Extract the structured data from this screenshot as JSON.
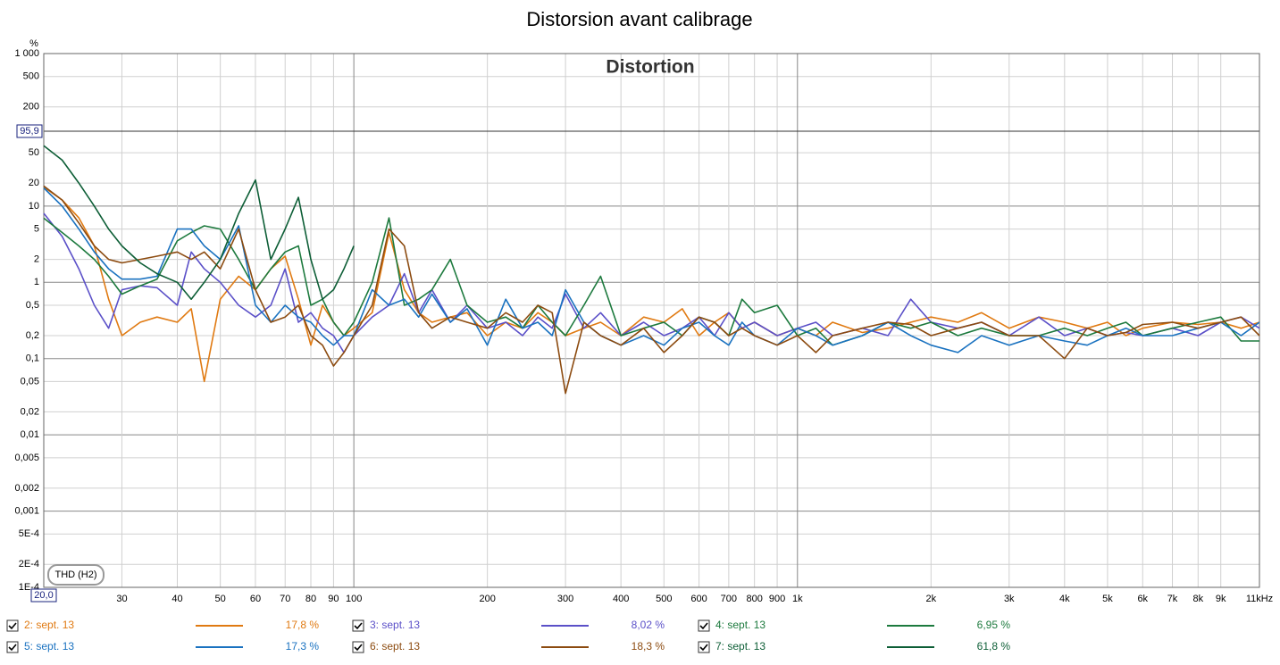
{
  "chart_data": {
    "type": "line",
    "title": "Distorsion avant calibrage",
    "plot_title": "Distortion",
    "y_unit": "%",
    "mode_label": "THD (H2)",
    "log_x": true,
    "log_y": true,
    "grid": true,
    "xlim": [
      20,
      11000
    ],
    "ylim": [
      0.0001,
      1000
    ],
    "xticks": [
      30,
      40,
      50,
      60,
      70,
      80,
      90,
      100,
      200,
      300,
      400,
      500,
      600,
      700,
      800,
      900,
      {
        "value": 1000,
        "label": "1k"
      },
      {
        "value": 2000,
        "label": "2k"
      },
      {
        "value": 3000,
        "label": "3k"
      },
      {
        "value": 4000,
        "label": "4k"
      },
      {
        "value": 5000,
        "label": "5k"
      },
      {
        "value": 6000,
        "label": "6k"
      },
      {
        "value": 7000,
        "label": "7k"
      },
      {
        "value": 8000,
        "label": "8k"
      },
      {
        "value": 9000,
        "label": "9k"
      },
      {
        "value": 11000,
        "label": "11kHz"
      }
    ],
    "yticks": [
      {
        "value": 1000,
        "label": "1 000"
      },
      500,
      200,
      50,
      20,
      10,
      5,
      2,
      1,
      {
        "value": 0.5,
        "label": "0,5"
      },
      {
        "value": 0.2,
        "label": "0,2"
      },
      {
        "value": 0.1,
        "label": "0,1"
      },
      {
        "value": 0.05,
        "label": "0,05"
      },
      {
        "value": 0.02,
        "label": "0,02"
      },
      {
        "value": 0.01,
        "label": "0,01"
      },
      {
        "value": 0.005,
        "label": "0,005"
      },
      {
        "value": 0.002,
        "label": "0,002"
      },
      {
        "value": 0.001,
        "label": "0,001"
      },
      {
        "value": 0.0005,
        "label": "5E-4"
      },
      {
        "value": 0.0002,
        "label": "2E-4"
      },
      {
        "value": 0.0001,
        "label": "1E-4"
      }
    ],
    "cursor": {
      "x": 20,
      "x_label": "20,0",
      "y": 95.9,
      "y_label": "95,9"
    },
    "x": [
      20,
      22,
      24,
      26,
      28,
      30,
      33,
      36,
      40,
      43,
      46,
      50,
      55,
      60,
      65,
      70,
      75,
      80,
      85,
      90,
      95,
      100,
      110,
      120,
      130,
      140,
      150,
      165,
      180,
      200,
      220,
      240,
      260,
      280,
      300,
      330,
      360,
      400,
      450,
      500,
      550,
      600,
      650,
      700,
      750,
      800,
      900,
      1000,
      1100,
      1200,
      1400,
      1600,
      1800,
      2000,
      2300,
      2600,
      3000,
      3500,
      4000,
      4500,
      5000,
      5500,
      6000,
      7000,
      8000,
      9000,
      10000,
      11000
    ],
    "series": [
      {
        "name": "2: sept. 13",
        "color": "#e07a12",
        "readout": 17.8,
        "readout_label": "17,8 %",
        "values": [
          17.8,
          12,
          7,
          3,
          0.6,
          0.2,
          0.3,
          0.35,
          0.3,
          0.45,
          0.05,
          0.6,
          1.2,
          0.8,
          1.5,
          2.2,
          0.6,
          0.15,
          0.5,
          0.3,
          0.2,
          0.25,
          0.4,
          4.5,
          0.8,
          0.4,
          0.3,
          0.35,
          0.4,
          0.2,
          0.3,
          0.25,
          0.4,
          0.3,
          0.2,
          0.25,
          0.3,
          0.2,
          0.35,
          0.3,
          0.45,
          0.2,
          0.3,
          0.4,
          0.25,
          0.3,
          0.2,
          0.25,
          0.2,
          0.3,
          0.22,
          0.25,
          0.3,
          0.35,
          0.3,
          0.4,
          0.25,
          0.35,
          0.3,
          0.25,
          0.3,
          0.2,
          0.25,
          0.3,
          0.28,
          0.3,
          0.25,
          0.3
        ]
      },
      {
        "name": "3: sept. 13",
        "color": "#5b50c8",
        "readout": 8.02,
        "readout_label": "8,02 %",
        "values": [
          8.02,
          4,
          1.5,
          0.5,
          0.25,
          0.8,
          0.9,
          0.85,
          0.5,
          2.5,
          1.5,
          1,
          0.5,
          0.35,
          0.5,
          1.5,
          0.3,
          0.4,
          0.25,
          0.2,
          0.12,
          0.2,
          0.35,
          0.5,
          1.3,
          0.4,
          0.8,
          0.3,
          0.5,
          0.25,
          0.3,
          0.2,
          0.35,
          0.25,
          0.7,
          0.25,
          0.4,
          0.2,
          0.3,
          0.2,
          0.25,
          0.35,
          0.2,
          0.4,
          0.25,
          0.3,
          0.2,
          0.25,
          0.3,
          0.2,
          0.25,
          0.2,
          0.6,
          0.3,
          0.25,
          0.3,
          0.2,
          0.35,
          0.2,
          0.25,
          0.2,
          0.22,
          0.2,
          0.25,
          0.2,
          0.3,
          0.35,
          0.25
        ]
      },
      {
        "name": "4: sept. 13",
        "color": "#1d7a3e",
        "readout": 6.95,
        "readout_label": "6,95 %",
        "values": [
          6.95,
          4.5,
          3,
          2,
          1.2,
          0.7,
          0.9,
          1.1,
          3.5,
          4.5,
          5.5,
          5,
          2,
          0.8,
          1.5,
          2.5,
          3,
          0.5,
          0.6,
          0.3,
          0.2,
          0.3,
          1,
          7,
          0.5,
          0.6,
          0.8,
          2,
          0.5,
          0.3,
          0.35,
          0.25,
          0.5,
          0.3,
          0.2,
          0.5,
          1.2,
          0.2,
          0.25,
          0.3,
          0.2,
          0.35,
          0.3,
          0.2,
          0.6,
          0.4,
          0.5,
          0.2,
          0.25,
          0.15,
          0.2,
          0.3,
          0.25,
          0.3,
          0.2,
          0.25,
          0.2,
          0.2,
          0.25,
          0.2,
          0.25,
          0.3,
          0.2,
          0.25,
          0.3,
          0.35,
          0.17,
          0.17
        ]
      },
      {
        "name": "5: sept. 13",
        "color": "#1a72c0",
        "readout": 17.3,
        "readout_label": "17,3 %",
        "values": [
          17.3,
          10,
          5,
          2.5,
          1.5,
          1.1,
          1.1,
          1.2,
          5,
          5,
          3,
          2,
          5.5,
          0.5,
          0.3,
          0.5,
          0.35,
          0.3,
          0.2,
          0.15,
          0.2,
          0.2,
          0.8,
          0.5,
          0.6,
          0.35,
          0.7,
          0.3,
          0.45,
          0.15,
          0.6,
          0.25,
          0.3,
          0.2,
          0.8,
          0.3,
          0.2,
          0.15,
          0.2,
          0.15,
          0.25,
          0.3,
          0.2,
          0.15,
          0.3,
          0.2,
          0.15,
          0.25,
          0.2,
          0.15,
          0.2,
          0.3,
          0.2,
          0.15,
          0.12,
          0.2,
          0.15,
          0.2,
          0.17,
          0.15,
          0.2,
          0.25,
          0.2,
          0.2,
          0.25,
          0.3,
          0.2,
          0.3
        ]
      },
      {
        "name": "6: sept. 13",
        "color": "#8c4b10",
        "readout": 18.3,
        "readout_label": "18,3 %",
        "values": [
          18.3,
          12,
          6,
          3,
          2,
          1.8,
          2,
          2.2,
          2.5,
          2,
          2.5,
          1.5,
          5,
          0.8,
          0.3,
          0.35,
          0.5,
          0.2,
          0.15,
          0.08,
          0.12,
          0.2,
          0.5,
          5,
          3,
          0.4,
          0.25,
          0.35,
          0.3,
          0.25,
          0.4,
          0.3,
          0.5,
          0.4,
          0.035,
          0.3,
          0.2,
          0.15,
          0.25,
          0.12,
          0.2,
          0.35,
          0.3,
          0.2,
          0.25,
          0.2,
          0.15,
          0.2,
          0.12,
          0.2,
          0.25,
          0.3,
          0.28,
          0.2,
          0.25,
          0.3,
          0.2,
          0.2,
          0.1,
          0.25,
          0.2,
          0.22,
          0.28,
          0.3,
          0.25,
          0.3,
          0.35,
          0.2
        ]
      },
      {
        "name": "7: sept. 13",
        "color": "#0d5e36",
        "readout": 61.8,
        "readout_label": "61,8 %",
        "values": [
          61.8,
          40,
          20,
          10,
          5,
          3,
          1.8,
          1.3,
          1,
          0.6,
          1,
          2,
          8,
          22,
          2,
          5,
          13,
          2,
          0.6,
          0.8,
          1.5,
          3,
          null,
          null,
          null,
          null,
          null,
          null,
          null,
          null,
          null,
          null,
          null,
          null,
          null,
          null,
          null,
          null,
          null,
          null,
          null,
          null,
          null,
          null,
          null,
          null,
          null,
          null,
          null,
          null,
          null,
          null,
          null,
          null,
          null,
          null,
          null,
          null,
          null,
          null,
          null,
          null,
          null,
          null,
          null,
          null,
          null,
          null
        ]
      }
    ]
  }
}
